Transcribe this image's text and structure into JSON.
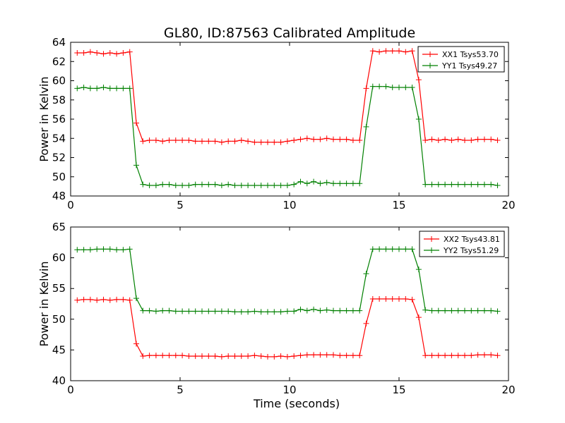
{
  "title": "GL80, ID:87563 Calibrated Amplitude",
  "chart_data": [
    {
      "type": "line",
      "xlabel": "",
      "ylabel": "Power in Kelvin",
      "xlim": [
        0,
        20
      ],
      "ylim": [
        48,
        64
      ],
      "xticks": [
        "0",
        "5",
        "10",
        "15",
        "20"
      ],
      "yticks": [
        "48",
        "50",
        "52",
        "54",
        "56",
        "58",
        "60",
        "62",
        "64"
      ],
      "grid": false,
      "legend_position": "top-right",
      "x": [
        0.3,
        0.6,
        0.9,
        1.2,
        1.5,
        1.8,
        2.1,
        2.4,
        2.7,
        3.0,
        3.3,
        3.6,
        3.9,
        4.2,
        4.5,
        4.8,
        5.1,
        5.4,
        5.7,
        6.0,
        6.3,
        6.6,
        6.9,
        7.2,
        7.5,
        7.8,
        8.1,
        8.4,
        8.7,
        9.0,
        9.3,
        9.6,
        9.9,
        10.2,
        10.5,
        10.8,
        11.1,
        11.4,
        11.7,
        12.0,
        12.3,
        12.6,
        12.9,
        13.2,
        13.5,
        13.8,
        14.1,
        14.4,
        14.7,
        15.0,
        15.3,
        15.6,
        15.9,
        16.2,
        16.5,
        16.8,
        17.1,
        17.4,
        17.7,
        18.0,
        18.3,
        18.6,
        18.9,
        19.2,
        19.5
      ],
      "series": [
        {
          "name": "XX1 Tsys53.70",
          "color": "#ff0000",
          "values": [
            62.9,
            62.9,
            63.0,
            62.9,
            62.8,
            62.9,
            62.8,
            62.9,
            63.0,
            55.6,
            53.7,
            53.8,
            53.8,
            53.7,
            53.8,
            53.8,
            53.8,
            53.8,
            53.7,
            53.7,
            53.7,
            53.7,
            53.6,
            53.7,
            53.7,
            53.8,
            53.7,
            53.6,
            53.6,
            53.6,
            53.6,
            53.6,
            53.7,
            53.8,
            53.9,
            54.0,
            53.9,
            53.9,
            54.0,
            53.9,
            53.9,
            53.9,
            53.8,
            53.8,
            59.2,
            63.1,
            63.0,
            63.1,
            63.1,
            63.1,
            63.0,
            63.1,
            60.1,
            53.8,
            53.9,
            53.8,
            53.9,
            53.8,
            53.9,
            53.8,
            53.8,
            53.9,
            53.9,
            53.9,
            53.8
          ]
        },
        {
          "name": "YY1 Tsys49.27",
          "color": "#008000",
          "values": [
            59.2,
            59.3,
            59.2,
            59.2,
            59.3,
            59.2,
            59.2,
            59.2,
            59.2,
            51.2,
            49.2,
            49.1,
            49.1,
            49.2,
            49.2,
            49.1,
            49.1,
            49.1,
            49.2,
            49.2,
            49.2,
            49.2,
            49.1,
            49.2,
            49.1,
            49.1,
            49.1,
            49.1,
            49.1,
            49.1,
            49.1,
            49.1,
            49.1,
            49.2,
            49.5,
            49.3,
            49.5,
            49.3,
            49.4,
            49.3,
            49.3,
            49.3,
            49.3,
            49.3,
            55.2,
            59.4,
            59.4,
            59.4,
            59.3,
            59.3,
            59.3,
            59.3,
            56.0,
            49.2,
            49.2,
            49.2,
            49.2,
            49.2,
            49.2,
            49.2,
            49.2,
            49.2,
            49.2,
            49.2,
            49.1
          ]
        }
      ]
    },
    {
      "type": "line",
      "xlabel": "Time (seconds)",
      "ylabel": "Power in Kelvin",
      "xlim": [
        0,
        20
      ],
      "ylim": [
        40,
        65
      ],
      "xticks": [
        "0",
        "5",
        "10",
        "15",
        "20"
      ],
      "yticks": [
        "40",
        "45",
        "50",
        "55",
        "60",
        "65"
      ],
      "grid": false,
      "legend_position": "top-right",
      "x": [
        0.3,
        0.6,
        0.9,
        1.2,
        1.5,
        1.8,
        2.1,
        2.4,
        2.7,
        3.0,
        3.3,
        3.6,
        3.9,
        4.2,
        4.5,
        4.8,
        5.1,
        5.4,
        5.7,
        6.0,
        6.3,
        6.6,
        6.9,
        7.2,
        7.5,
        7.8,
        8.1,
        8.4,
        8.7,
        9.0,
        9.3,
        9.6,
        9.9,
        10.2,
        10.5,
        10.8,
        11.1,
        11.4,
        11.7,
        12.0,
        12.3,
        12.6,
        12.9,
        13.2,
        13.5,
        13.8,
        14.1,
        14.4,
        14.7,
        15.0,
        15.3,
        15.6,
        15.9,
        16.2,
        16.5,
        16.8,
        17.1,
        17.4,
        17.7,
        18.0,
        18.3,
        18.6,
        18.9,
        19.2,
        19.5
      ],
      "series": [
        {
          "name": "XX2 Tsys43.81",
          "color": "#ff0000",
          "values": [
            53.1,
            53.2,
            53.2,
            53.1,
            53.2,
            53.1,
            53.2,
            53.2,
            53.1,
            46.0,
            44.0,
            44.1,
            44.1,
            44.1,
            44.1,
            44.1,
            44.1,
            44.0,
            44.0,
            44.0,
            44.0,
            44.0,
            43.9,
            44.0,
            44.0,
            44.0,
            44.0,
            44.1,
            44.0,
            43.9,
            43.9,
            44.0,
            43.9,
            44.0,
            44.1,
            44.2,
            44.2,
            44.2,
            44.2,
            44.2,
            44.1,
            44.1,
            44.1,
            44.1,
            49.3,
            53.3,
            53.3,
            53.3,
            53.3,
            53.3,
            53.3,
            53.2,
            50.3,
            44.1,
            44.1,
            44.1,
            44.1,
            44.1,
            44.1,
            44.1,
            44.1,
            44.2,
            44.2,
            44.2,
            44.1
          ]
        },
        {
          "name": "YY2 Tsys51.29",
          "color": "#008000",
          "values": [
            61.3,
            61.3,
            61.3,
            61.4,
            61.4,
            61.4,
            61.3,
            61.3,
            61.4,
            53.4,
            51.4,
            51.4,
            51.3,
            51.4,
            51.4,
            51.3,
            51.3,
            51.3,
            51.3,
            51.3,
            51.3,
            51.3,
            51.3,
            51.3,
            51.2,
            51.2,
            51.2,
            51.3,
            51.2,
            51.2,
            51.2,
            51.2,
            51.3,
            51.3,
            51.6,
            51.4,
            51.6,
            51.4,
            51.5,
            51.4,
            51.4,
            51.4,
            51.4,
            51.4,
            57.4,
            61.4,
            61.4,
            61.4,
            61.4,
            61.4,
            61.4,
            61.4,
            58.1,
            51.5,
            51.4,
            51.4,
            51.4,
            51.4,
            51.4,
            51.4,
            51.4,
            51.4,
            51.4,
            51.4,
            51.3
          ]
        }
      ]
    }
  ]
}
